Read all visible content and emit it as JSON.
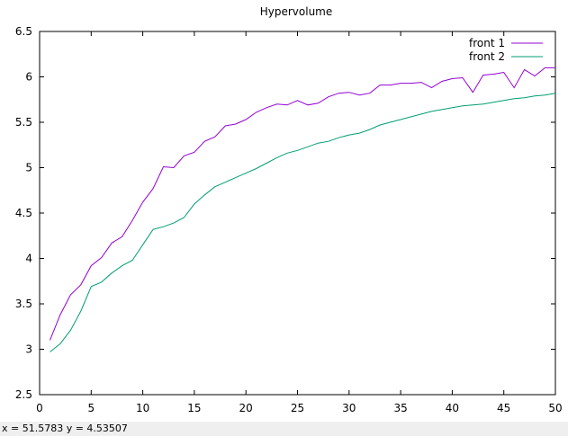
{
  "chart_data": {
    "type": "line",
    "title": "Hypervolume",
    "xlabel": "",
    "ylabel": "",
    "xlim": [
      0,
      50
    ],
    "ylim": [
      2.5,
      6.5
    ],
    "xticks": [
      0,
      5,
      10,
      15,
      20,
      25,
      30,
      35,
      40,
      45,
      50
    ],
    "yticks": [
      2.5,
      3,
      3.5,
      4,
      4.5,
      5,
      5.5,
      6,
      6.5
    ],
    "xtick_labels": [
      "0",
      "5",
      "10",
      "15",
      "20",
      "25",
      "30",
      "35",
      "40",
      "45",
      "50"
    ],
    "ytick_labels": [
      "2.5",
      "3",
      "3.5",
      "4",
      "4.5",
      "5",
      "5.5",
      "6",
      "6.5"
    ],
    "grid": false,
    "legend_position": "top-right",
    "x": [
      1,
      2,
      3,
      4,
      5,
      6,
      7,
      8,
      9,
      10,
      11,
      12,
      13,
      14,
      15,
      16,
      17,
      18,
      19,
      20,
      21,
      22,
      23,
      24,
      25,
      26,
      27,
      28,
      29,
      30,
      31,
      32,
      33,
      34,
      35,
      36,
      37,
      38,
      39,
      40,
      41,
      42,
      43,
      44,
      45,
      46,
      47,
      48,
      49,
      50
    ],
    "series": [
      {
        "name": "front 1",
        "color": "#9400d3",
        "values": [
          3.1,
          3.38,
          3.6,
          3.71,
          3.92,
          4.01,
          4.17,
          4.24,
          4.42,
          4.62,
          4.77,
          5.01,
          5.0,
          5.13,
          5.17,
          5.29,
          5.34,
          5.46,
          5.48,
          5.53,
          5.61,
          5.66,
          5.7,
          5.69,
          5.74,
          5.69,
          5.71,
          5.78,
          5.82,
          5.83,
          5.8,
          5.82,
          5.91,
          5.91,
          5.93,
          5.93,
          5.94,
          5.88,
          5.95,
          5.98,
          5.99,
          5.83,
          6.02,
          6.03,
          6.05,
          5.88,
          6.08,
          6.01,
          6.1,
          6.1
        ]
      },
      {
        "name": "front 2",
        "color": "#009e73",
        "values": [
          2.97,
          3.06,
          3.21,
          3.42,
          3.69,
          3.74,
          3.84,
          3.92,
          3.98,
          4.15,
          4.32,
          4.35,
          4.39,
          4.45,
          4.6,
          4.7,
          4.79,
          4.84,
          4.89,
          4.94,
          4.99,
          5.05,
          5.11,
          5.16,
          5.19,
          5.23,
          5.27,
          5.29,
          5.33,
          5.36,
          5.38,
          5.42,
          5.47,
          5.5,
          5.53,
          5.56,
          5.59,
          5.62,
          5.64,
          5.66,
          5.68,
          5.69,
          5.7,
          5.72,
          5.74,
          5.76,
          5.77,
          5.79,
          5.8,
          5.82
        ]
      }
    ]
  },
  "status": {
    "text": "x = 51.5783 y = 4.53507"
  }
}
